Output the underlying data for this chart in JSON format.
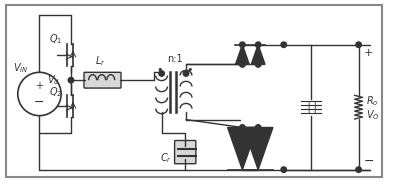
{
  "bg_color": "#ffffff",
  "line_color": "#333333",
  "gray_fill": "#cccccc",
  "fig_width": 4.02,
  "fig_height": 1.86,
  "dpi": 100
}
